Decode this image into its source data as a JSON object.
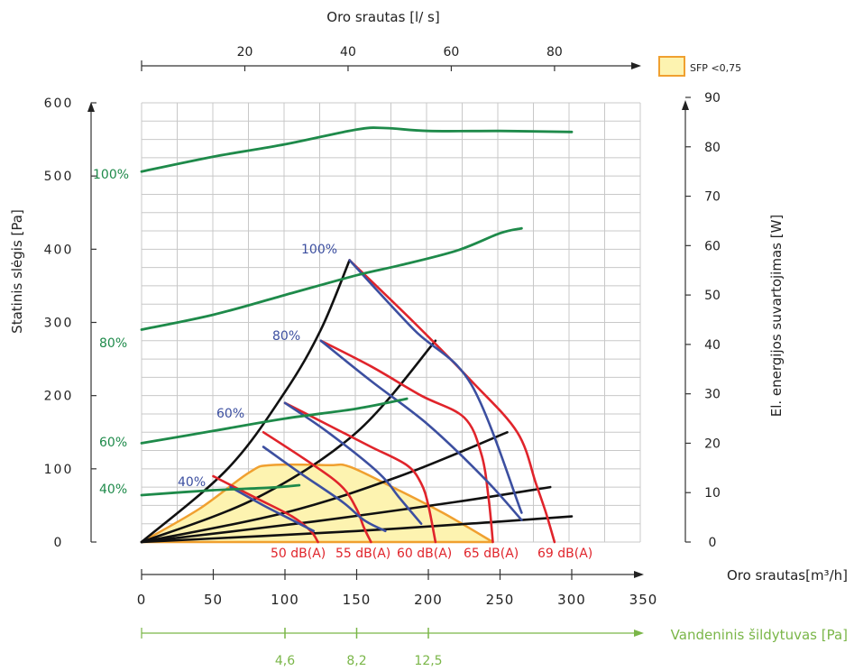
{
  "chart_data": {
    "type": "line",
    "title": "",
    "colors": {
      "power": "#1e8a4a",
      "fan_curve": "#3c4fa0",
      "noise": "#e0242b",
      "system": "#111111",
      "sfp_fill": "#fdf3b0",
      "sfp_edge": "#f0a030",
      "heater_axis": "#7ab648",
      "grid": "#c8c8c8"
    },
    "axes": {
      "x_bottom": {
        "label": "Oro srautas[m³/h]",
        "range": [
          0,
          350
        ],
        "ticks": [
          "0",
          "50",
          "100",
          "150",
          "200",
          "250",
          "300",
          "350"
        ]
      },
      "x_top": {
        "label": "Oro srautas [l/ s]",
        "range": [
          0,
          97.2
        ],
        "ticks": [
          "20",
          "40",
          "60",
          "80"
        ]
      },
      "x_heater": {
        "label": "Vandeninis šildytuvas [Pa]",
        "ticks": [
          {
            "flow": 100,
            "text": "4,6"
          },
          {
            "flow": 150,
            "text": "8,2"
          },
          {
            "flow": 200,
            "text": "12,5"
          }
        ]
      },
      "y_left": {
        "label": "Statinis slėgis  [Pa]",
        "range": [
          0,
          600
        ],
        "ticks": [
          "0",
          "100",
          "200",
          "300",
          "400",
          "500",
          "600"
        ]
      },
      "y_right": {
        "label": "El. energijos suvartojimas [W]",
        "range": [
          0,
          90
        ],
        "ticks": [
          "0",
          "10",
          "20",
          "30",
          "40",
          "50",
          "60",
          "70",
          "80",
          "90"
        ]
      }
    },
    "legend": {
      "position": "top-right",
      "label": "SFP <0,75"
    },
    "pressure_curves": [
      {
        "name": "100%",
        "points": [
          [
            145,
            385
          ],
          [
            190,
            290
          ],
          [
            230,
            215
          ],
          [
            265,
            40
          ]
        ]
      },
      {
        "name": "80%",
        "points": [
          [
            125,
            275
          ],
          [
            160,
            220
          ],
          [
            200,
            160
          ],
          [
            240,
            85
          ],
          [
            265,
            30
          ]
        ]
      },
      {
        "name": "60%",
        "points": [
          [
            100,
            190
          ],
          [
            130,
            150
          ],
          [
            165,
            95
          ],
          [
            180,
            60
          ],
          [
            195,
            25
          ]
        ]
      },
      {
        "name": "40%",
        "points": [
          [
            85,
            130
          ],
          [
            110,
            95
          ],
          [
            140,
            55
          ],
          [
            155,
            30
          ],
          [
            170,
            15
          ]
        ]
      },
      {
        "name": "",
        "points": [
          [
            62,
            75
          ],
          [
            85,
            50
          ],
          [
            105,
            30
          ],
          [
            120,
            15
          ]
        ]
      }
    ],
    "power_curves": [
      {
        "name": "100%",
        "points": [
          [
            0,
            75
          ],
          [
            50,
            78
          ],
          [
            100,
            80.5
          ],
          [
            150,
            83.5
          ],
          [
            170,
            83.8
          ],
          [
            200,
            83.2
          ],
          [
            250,
            83.2
          ],
          [
            300,
            83
          ]
        ]
      },
      {
        "name": "80%",
        "points": [
          [
            0,
            43
          ],
          [
            50,
            46
          ],
          [
            100,
            50
          ],
          [
            150,
            54
          ],
          [
            180,
            56
          ],
          [
            220,
            59
          ],
          [
            250,
            62.5
          ],
          [
            265,
            63.5
          ]
        ]
      },
      {
        "name": "60%",
        "points": [
          [
            0,
            20
          ],
          [
            50,
            22.5
          ],
          [
            100,
            25
          ],
          [
            150,
            27
          ],
          [
            185,
            29
          ]
        ]
      },
      {
        "name": "40%",
        "points": [
          [
            0,
            9.5
          ],
          [
            50,
            10.5
          ],
          [
            90,
            11
          ],
          [
            110,
            11.5
          ]
        ]
      }
    ],
    "noise_curves": [
      {
        "name": "50 dB(A)",
        "points": [
          [
            50,
            90
          ],
          [
            80,
            60
          ],
          [
            105,
            35
          ],
          [
            118,
            15
          ],
          [
            123,
            0
          ]
        ]
      },
      {
        "name": "55 dB(A)",
        "points": [
          [
            85,
            150
          ],
          [
            120,
            105
          ],
          [
            140,
            75
          ],
          [
            150,
            45
          ],
          [
            155,
            20
          ],
          [
            160,
            0
          ]
        ]
      },
      {
        "name": "60 dB(A)",
        "points": [
          [
            100,
            190
          ],
          [
            130,
            160
          ],
          [
            160,
            130
          ],
          [
            185,
            105
          ],
          [
            195,
            80
          ],
          [
            200,
            50
          ],
          [
            205,
            0
          ]
        ]
      },
      {
        "name": "65 dB(A)",
        "points": [
          [
            125,
            275
          ],
          [
            160,
            240
          ],
          [
            195,
            200
          ],
          [
            225,
            170
          ],
          [
            237,
            120
          ],
          [
            242,
            60
          ],
          [
            245,
            0
          ]
        ]
      },
      {
        "name": "69 dB(A)",
        "points": [
          [
            145,
            385
          ],
          [
            190,
            300
          ],
          [
            230,
            220
          ],
          [
            262,
            150
          ],
          [
            275,
            80
          ],
          [
            282,
            40
          ],
          [
            288,
            0
          ]
        ]
      }
    ],
    "system_curves": [
      {
        "name": "",
        "points": [
          [
            0,
            0
          ],
          [
            60,
            100
          ],
          [
            100,
            205
          ],
          [
            125,
            290
          ],
          [
            145,
            385
          ]
        ]
      },
      {
        "name": "",
        "points": [
          [
            0,
            0
          ],
          [
            80,
            60
          ],
          [
            150,
            150
          ],
          [
            205,
            275
          ]
        ]
      },
      {
        "name": "",
        "points": [
          [
            0,
            0
          ],
          [
            100,
            40
          ],
          [
            180,
            90
          ],
          [
            255,
            150
          ]
        ]
      },
      {
        "name": "",
        "points": [
          [
            0,
            0
          ],
          [
            120,
            28
          ],
          [
            220,
            55
          ],
          [
            285,
            75
          ]
        ]
      },
      {
        "name": "",
        "points": [
          [
            0,
            0
          ],
          [
            150,
            15
          ],
          [
            250,
            28
          ],
          [
            300,
            35
          ]
        ]
      }
    ],
    "sfp_region": [
      [
        0,
        0
      ],
      [
        40,
        45
      ],
      [
        75,
        95
      ],
      [
        90,
        105
      ],
      [
        130,
        105
      ],
      [
        145,
        103
      ],
      [
        175,
        75
      ],
      [
        210,
        40
      ],
      [
        245,
        0
      ]
    ]
  }
}
